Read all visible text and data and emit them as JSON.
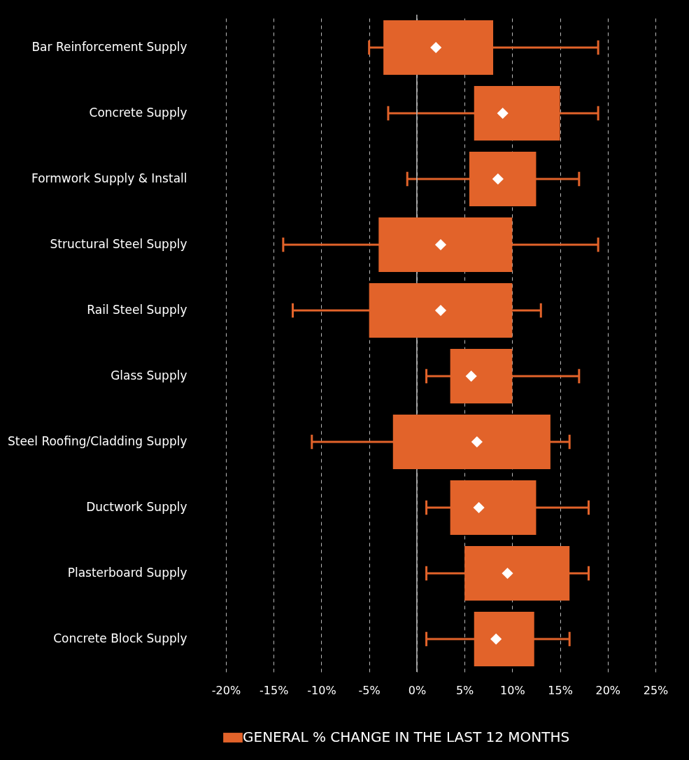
{
  "chart_data": {
    "type": "box",
    "orientation": "horizontal",
    "categories": [
      "Bar Reinforcement Supply",
      "Concrete Supply",
      "Formwork Supply & Install",
      "Structural Steel Supply",
      "Rail Steel Supply",
      "Glass Supply",
      "Steel Roofing/Cladding Supply",
      "Ductwork Supply",
      "Plasterboard Supply",
      "Concrete Block Supply"
    ],
    "series": [
      {
        "name": "GENERAL % CHANGE IN THE LAST 12 MONTHS",
        "color": "#e2632a",
        "boxes": [
          {
            "low": -5,
            "q1": -3.5,
            "q3": 8,
            "high": 19,
            "mean": 2
          },
          {
            "low": -3,
            "q1": 6,
            "q3": 15,
            "high": 19,
            "mean": 9
          },
          {
            "low": -1,
            "q1": 5.5,
            "q3": 12.5,
            "high": 17,
            "mean": 8.5
          },
          {
            "low": -14,
            "q1": -4,
            "q3": 10,
            "high": 19,
            "mean": 2.5
          },
          {
            "low": -13,
            "q1": -5,
            "q3": 10,
            "high": 13,
            "mean": 2.5
          },
          {
            "low": 1,
            "q1": 3.5,
            "q3": 10,
            "high": 17,
            "mean": 5.7
          },
          {
            "low": -11,
            "q1": -2.5,
            "q3": 14,
            "high": 16,
            "mean": 6.3
          },
          {
            "low": 1,
            "q1": 3.5,
            "q3": 12.5,
            "high": 18,
            "mean": 6.5
          },
          {
            "low": 1,
            "q1": 5,
            "q3": 16,
            "high": 18,
            "mean": 9.5
          },
          {
            "low": 1,
            "q1": 6,
            "q3": 12.3,
            "high": 16,
            "mean": 8.3
          }
        ]
      }
    ],
    "xlim": [
      -20,
      25
    ],
    "xticks": [
      {
        "value": -20,
        "label": "-20%"
      },
      {
        "value": -15,
        "label": "-15%"
      },
      {
        "value": -10,
        "label": "-10%"
      },
      {
        "value": -5,
        "label": "-5%"
      },
      {
        "value": 0,
        "label": "0%"
      },
      {
        "value": 5,
        "label": "5%"
      },
      {
        "value": 10,
        "label": "10%"
      },
      {
        "value": 15,
        "label": "15%"
      },
      {
        "value": 20,
        "label": "20%"
      },
      {
        "value": 25,
        "label": "25%"
      }
    ],
    "grid": "x",
    "ref_lines": [
      {
        "axis": "x",
        "value": 0,
        "color": "#bbbbbb"
      }
    ],
    "legend": "bottom",
    "marker": "diamond"
  }
}
